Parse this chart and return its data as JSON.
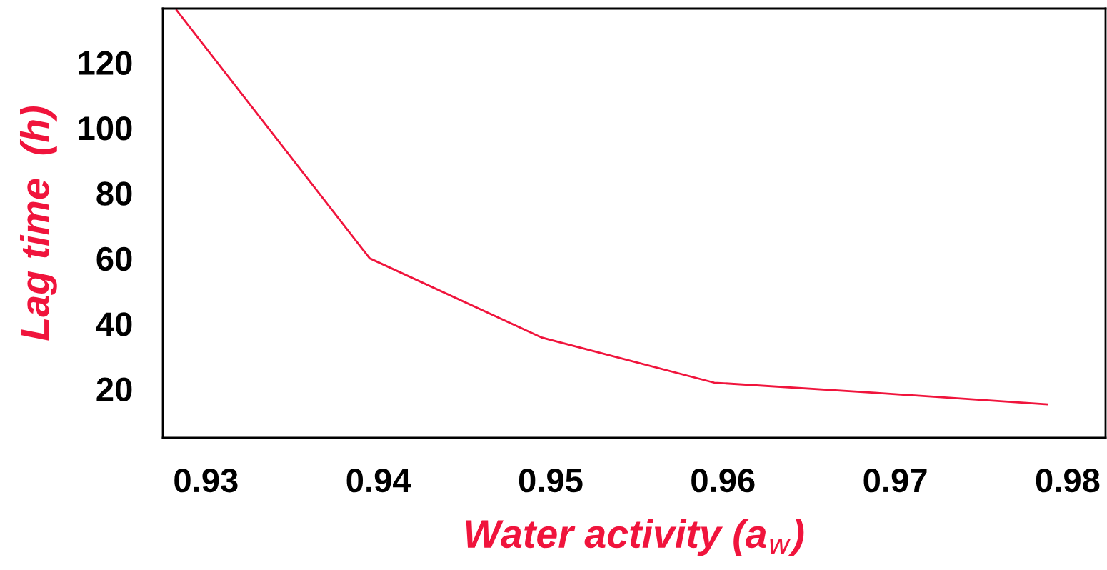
{
  "chart_data": {
    "type": "line",
    "xlabel": "Water activity (a$_{w}$)",
    "ylabel": "Lag time  (h)",
    "x": [
      0.9283,
      0.9395,
      0.9495,
      0.9595,
      0.9688,
      0.9788
    ],
    "series": [
      {
        "color": "#f0143c",
        "values": [
          136,
          60,
          35.7,
          21.9,
          18.8,
          15.3
        ]
      }
    ],
    "xlim": [
      0.9275,
      0.9822
    ],
    "xticks": [
      0.93,
      0.94,
      0.95,
      0.96,
      0.97,
      0.98
    ],
    "ylim": [
      5,
      136.5
    ],
    "yticks": [
      20,
      40,
      60,
      80,
      100,
      120
    ],
    "grid": false,
    "legend": false,
    "marker": "none",
    "line_style": "solid"
  }
}
